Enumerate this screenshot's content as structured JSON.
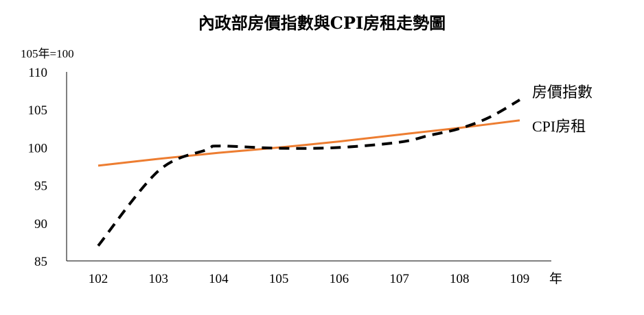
{
  "chart_data": {
    "type": "line",
    "title": "內政部房價指數與CPI房租走勢圖",
    "ylabel": "105年=100",
    "xlabel": "年",
    "categories": [
      "102",
      "103",
      "104",
      "105",
      "106",
      "107",
      "108",
      "109"
    ],
    "ylim": [
      85,
      110
    ],
    "yticks": [
      85,
      90,
      95,
      100,
      105,
      110
    ],
    "grid": false,
    "series": [
      {
        "name": "房價指數",
        "style": "dashed",
        "color": "#000000",
        "x": [
          102,
          103,
          103.8,
          104,
          105,
          106,
          107,
          107.5,
          108,
          108.5,
          109
        ],
        "values": [
          87.0,
          96.9,
          99.7,
          100.2,
          99.9,
          100.0,
          100.7,
          101.6,
          102.5,
          104.0,
          106.3
        ]
      },
      {
        "name": "CPI房租",
        "style": "solid",
        "color": "#ED7D31",
        "x": [
          102,
          103,
          104,
          105,
          106,
          107,
          108,
          109
        ],
        "values": [
          97.6,
          98.5,
          99.3,
          100.0,
          100.8,
          101.7,
          102.6,
          103.6
        ]
      }
    ]
  }
}
